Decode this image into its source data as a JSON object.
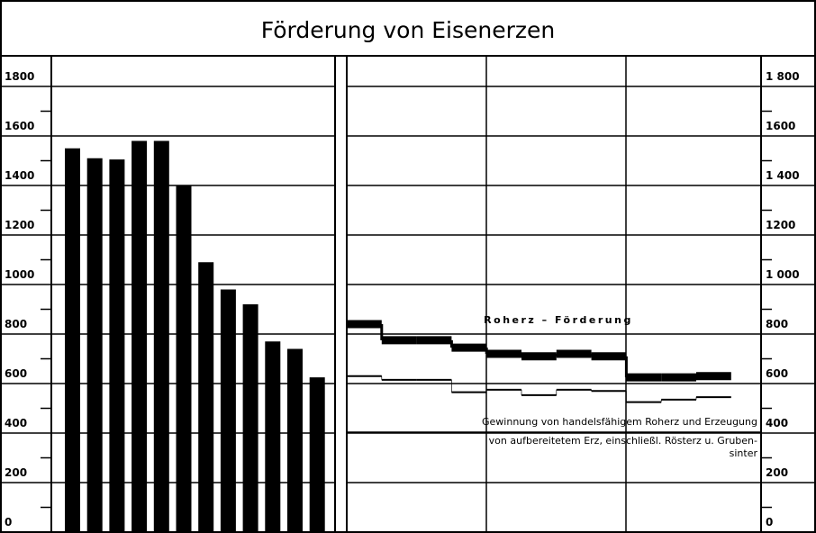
{
  "chart_data": [
    {
      "type": "bar",
      "title": "Förderung von Eisenerzen",
      "categories": [
        null,
        null,
        null,
        null,
        null,
        null,
        null,
        null,
        null,
        null,
        null,
        null
      ],
      "values": [
        1550,
        1510,
        1505,
        1580,
        1580,
        1400,
        1090,
        980,
        920,
        770,
        740,
        625
      ],
      "color": "#000000",
      "ylim": [
        0,
        1800
      ],
      "yticks": [
        0,
        200,
        400,
        600,
        800,
        1000,
        1200,
        1400,
        1600,
        1800
      ],
      "grid": true
    },
    {
      "type": "step",
      "categories": [
        null,
        null,
        null,
        null,
        null,
        null,
        null,
        null,
        null,
        null,
        null
      ],
      "series": [
        {
          "name": "Roherz – Förderung",
          "color": "#000000",
          "width": 9,
          "values": [
            840,
            775,
            775,
            745,
            720,
            710,
            720,
            710,
            625,
            625,
            630
          ]
        },
        {
          "name": "Gewinnung von handelsfähigem Roherz und Erzeugung von aufbereitetem Erz, einschließl. Rösterz u. Gruben-sinter",
          "color": "#000000",
          "width": 2,
          "values": [
            630,
            615,
            615,
            565,
            575,
            553,
            575,
            570,
            525,
            535,
            545
          ]
        }
      ],
      "ylim": [
        0,
        1800
      ],
      "yticks": [
        0,
        200,
        400,
        600,
        800,
        {
          "value": 1000,
          "label": "1 000"
        },
        1200,
        {
          "value": 1400,
          "label": "1 400"
        },
        1600,
        {
          "value": 1800,
          "label": "1 800"
        }
      ],
      "grid": true
    }
  ]
}
